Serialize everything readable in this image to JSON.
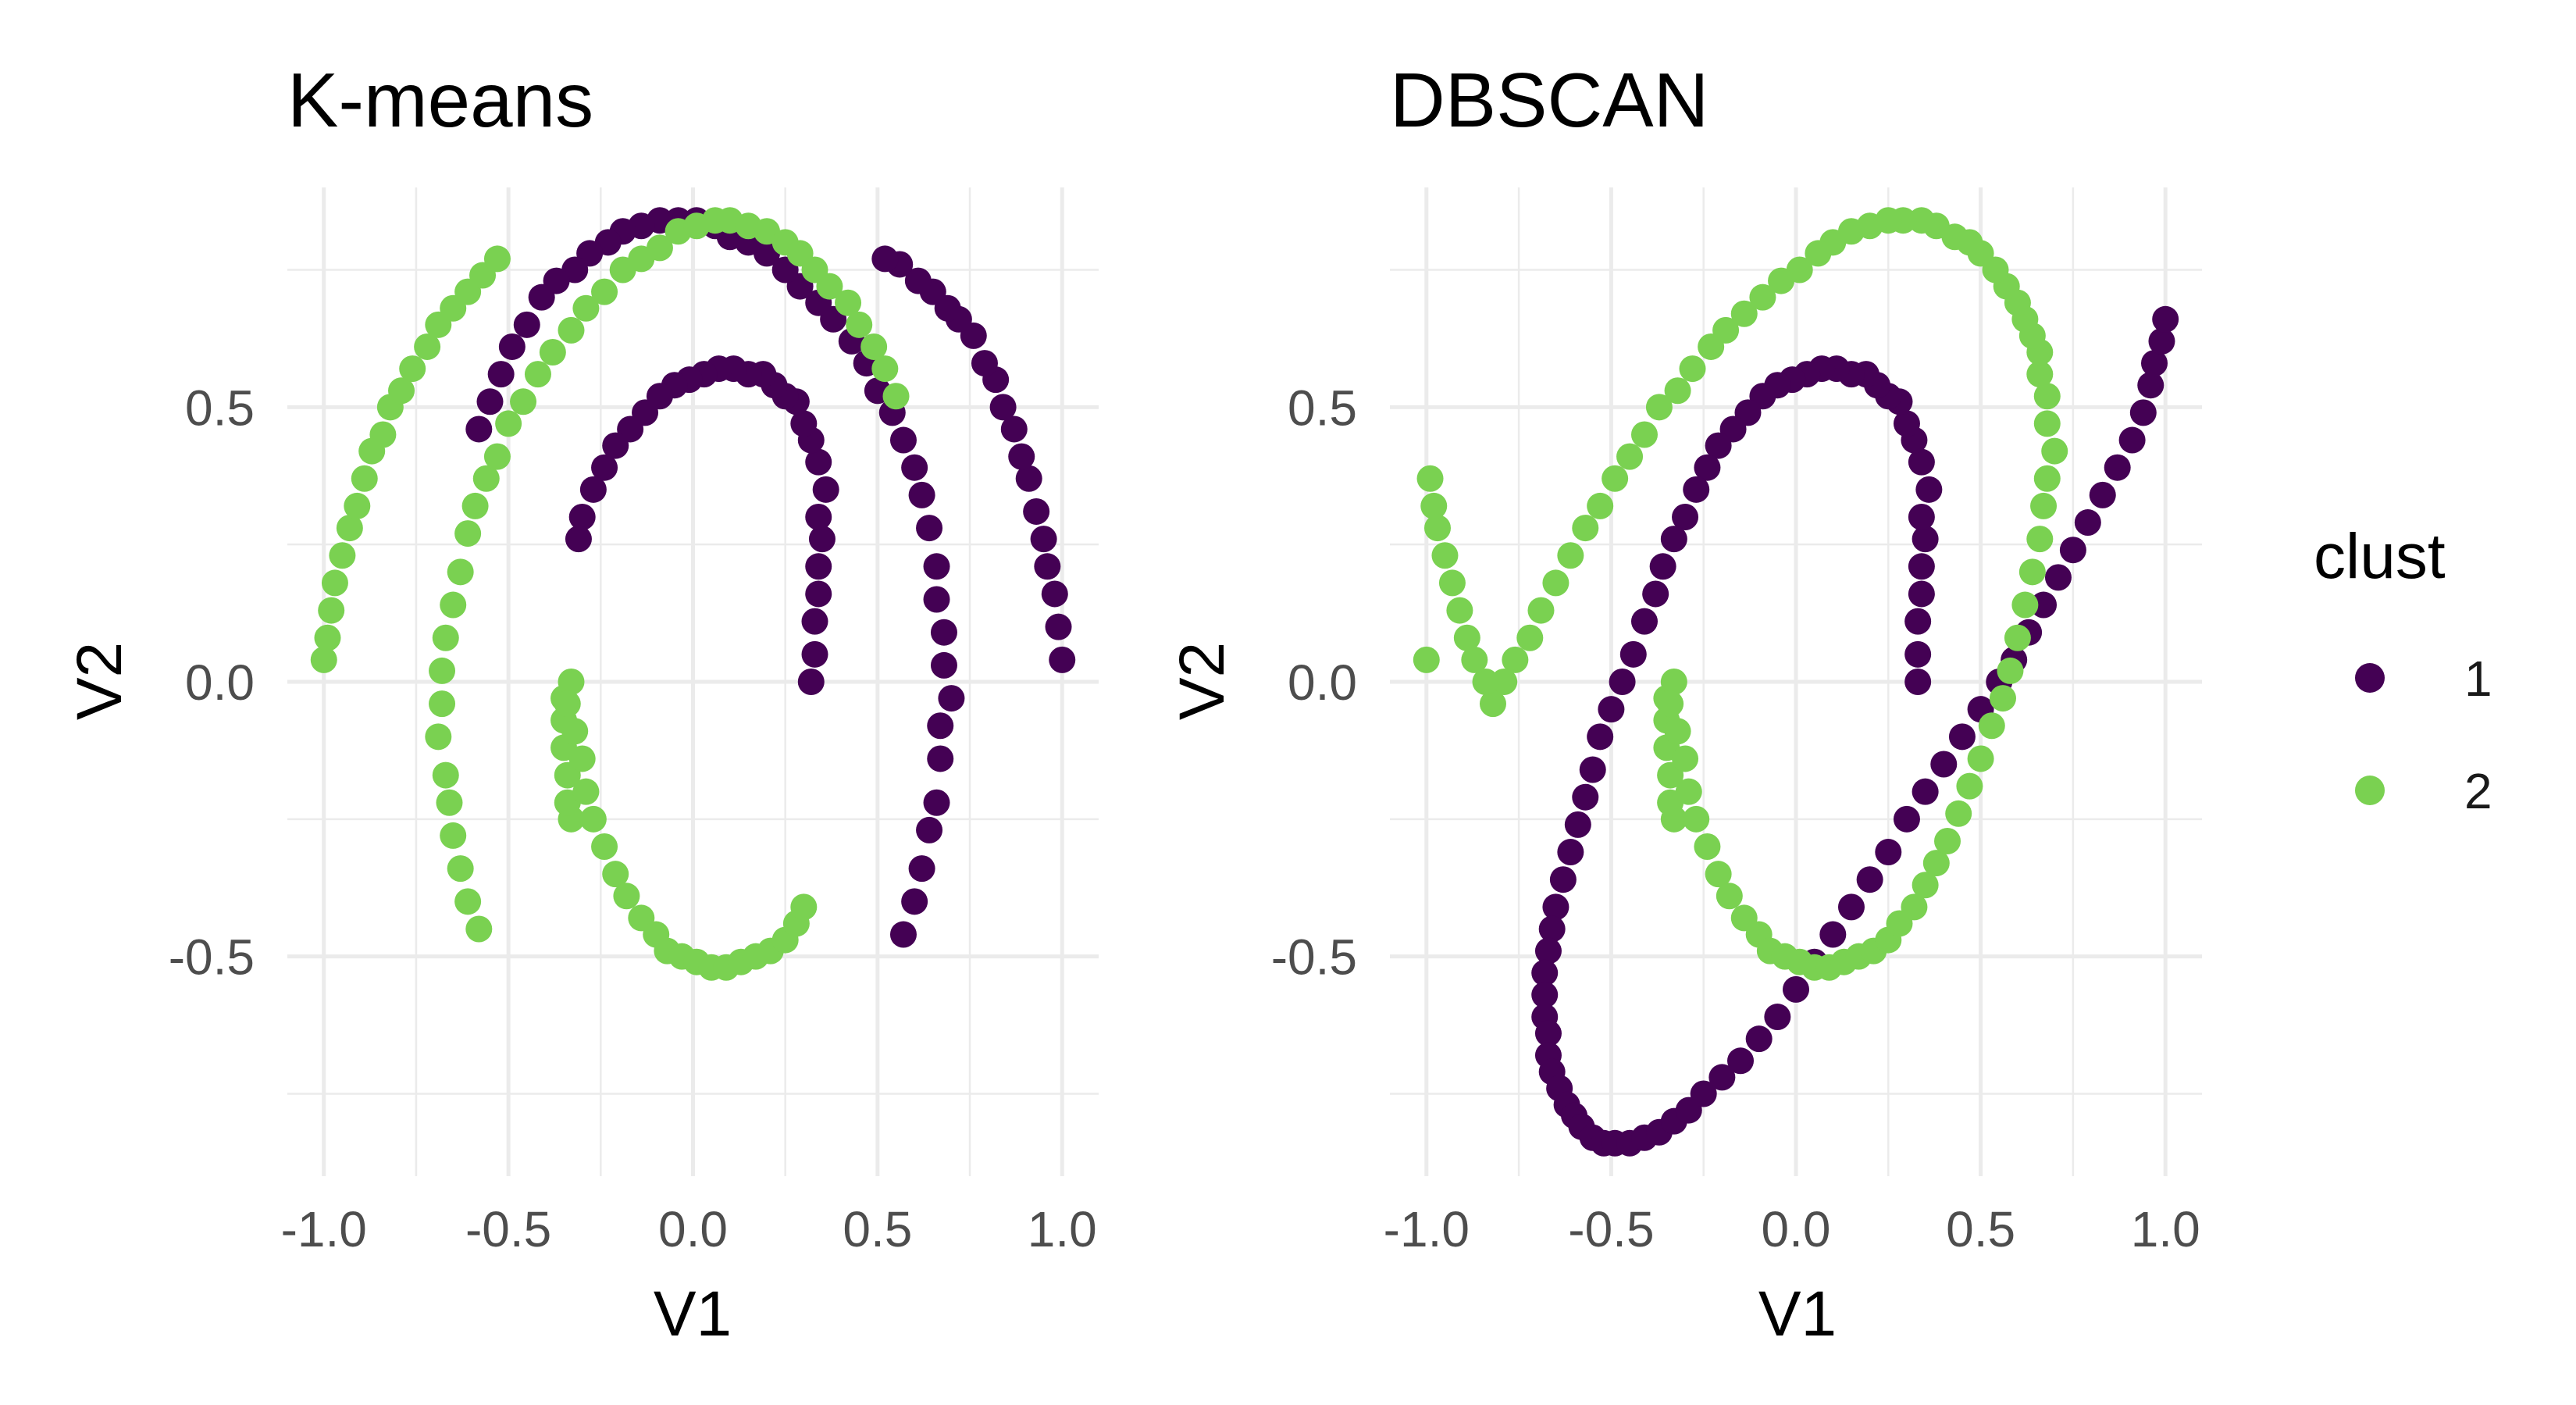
{
  "chart_data": [
    {
      "type": "scatter",
      "title": "K-means",
      "xlabel": "V1",
      "ylabel": "V2",
      "xlim": [
        -1.0,
        1.0
      ],
      "ylim": [
        -0.9,
        0.9
      ],
      "x_ticks": [
        "-1.0",
        "-0.5",
        "0.0",
        "0.5",
        "1.0"
      ],
      "y_ticks": [
        "-0.5",
        "0.0",
        "0.5"
      ],
      "grid": true,
      "series": [
        {
          "name": "1",
          "color": "#440154",
          "x": [
            0.32,
            0.33,
            0.33,
            0.34,
            0.34,
            0.35,
            0.34,
            0.36,
            0.34,
            0.32,
            0.3,
            0.28,
            0.25,
            0.22,
            0.19,
            0.15,
            0.11,
            0.07,
            0.03,
            -0.01,
            -0.05,
            -0.09,
            -0.13,
            -0.17,
            -0.21,
            -0.24,
            -0.27,
            -0.3,
            -0.31,
            0.57,
            0.6,
            0.62,
            0.64,
            0.66,
            0.67,
            0.67,
            0.7,
            0.68,
            0.68,
            0.66,
            0.66,
            0.64,
            0.62,
            0.6,
            0.57,
            0.54,
            0.5,
            0.47,
            0.43,
            0.38,
            0.34,
            0.29,
            0.25,
            0.2,
            0.15,
            0.1,
            0.06,
            0.01,
            -0.04,
            -0.09,
            -0.14,
            -0.19,
            -0.23,
            -0.28,
            -0.32,
            -0.37,
            -0.41,
            -0.45,
            -0.49,
            -0.52,
            -0.55,
            -0.58,
            1.0,
            0.99,
            0.98,
            0.96,
            0.95,
            0.93,
            0.91,
            0.89,
            0.87,
            0.84,
            0.82,
            0.79,
            0.76,
            0.72,
            0.69,
            0.65,
            0.61,
            0.56,
            0.52
          ],
          "y": [
            0.0,
            0.05,
            0.11,
            0.16,
            0.21,
            0.26,
            0.3,
            0.35,
            0.4,
            0.44,
            0.47,
            0.51,
            0.52,
            0.54,
            0.56,
            0.56,
            0.57,
            0.57,
            0.56,
            0.55,
            0.54,
            0.52,
            0.49,
            0.46,
            0.43,
            0.39,
            0.35,
            0.3,
            0.26,
            -0.46,
            -0.4,
            -0.34,
            -0.27,
            -0.22,
            -0.14,
            -0.08,
            -0.03,
            0.03,
            0.09,
            0.15,
            0.21,
            0.28,
            0.34,
            0.39,
            0.44,
            0.49,
            0.53,
            0.58,
            0.62,
            0.66,
            0.69,
            0.72,
            0.75,
            0.78,
            0.8,
            0.81,
            0.83,
            0.84,
            0.84,
            0.84,
            0.83,
            0.82,
            0.8,
            0.78,
            0.75,
            0.73,
            0.7,
            0.65,
            0.61,
            0.56,
            0.51,
            0.46,
            0.04,
            0.1,
            0.16,
            0.21,
            0.26,
            0.31,
            0.37,
            0.41,
            0.46,
            0.5,
            0.55,
            0.58,
            0.63,
            0.66,
            0.68,
            0.71,
            0.73,
            0.76,
            0.77
          ]
        },
        {
          "name": "2",
          "color": "#7AD151",
          "x": [
            -0.33,
            -0.34,
            -0.34,
            -0.35,
            -0.35,
            -0.35,
            -0.33,
            -0.34,
            -0.32,
            -0.3,
            -0.29,
            -0.27,
            -0.24,
            -0.21,
            -0.18,
            -0.14,
            -0.1,
            -0.07,
            -0.03,
            0.01,
            0.05,
            0.09,
            0.13,
            0.17,
            0.21,
            0.25,
            0.28,
            0.3,
            -0.58,
            -0.61,
            -0.63,
            -0.65,
            -0.66,
            -0.67,
            -0.69,
            -0.68,
            -0.68,
            -0.67,
            -0.65,
            -0.63,
            -0.61,
            -0.59,
            -0.56,
            -0.53,
            -0.5,
            -0.46,
            -0.42,
            -0.38,
            -0.33,
            -0.29,
            -0.24,
            -0.19,
            -0.14,
            -0.09,
            -0.04,
            0.01,
            0.06,
            0.1,
            0.15,
            0.2,
            0.25,
            0.29,
            0.33,
            0.37,
            0.42,
            0.45,
            0.49,
            0.52,
            0.55,
            -1.0,
            -0.99,
            -0.98,
            -0.97,
            -0.95,
            -0.93,
            -0.91,
            -0.89,
            -0.87,
            -0.84,
            -0.82,
            -0.79,
            -0.76,
            -0.72,
            -0.69,
            -0.65,
            -0.61,
            -0.57,
            -0.53
          ],
          "y": [
            -0.25,
            -0.22,
            -0.17,
            -0.12,
            -0.07,
            -0.03,
            0.0,
            -0.04,
            -0.09,
            -0.14,
            -0.2,
            -0.25,
            -0.3,
            -0.35,
            -0.39,
            -0.43,
            -0.46,
            -0.49,
            -0.5,
            -0.51,
            -0.52,
            -0.52,
            -0.51,
            -0.5,
            -0.49,
            -0.47,
            -0.44,
            -0.41,
            -0.45,
            -0.4,
            -0.34,
            -0.28,
            -0.22,
            -0.17,
            -0.1,
            -0.04,
            0.02,
            0.08,
            0.14,
            0.2,
            0.27,
            0.32,
            0.37,
            0.41,
            0.47,
            0.51,
            0.56,
            0.6,
            0.64,
            0.68,
            0.71,
            0.75,
            0.77,
            0.79,
            0.82,
            0.83,
            0.84,
            0.84,
            0.83,
            0.82,
            0.8,
            0.78,
            0.75,
            0.72,
            0.69,
            0.65,
            0.61,
            0.57,
            0.52,
            0.04,
            0.08,
            0.13,
            0.18,
            0.23,
            0.28,
            0.32,
            0.37,
            0.42,
            0.45,
            0.5,
            0.53,
            0.57,
            0.61,
            0.65,
            0.68,
            0.71,
            0.74,
            0.77
          ]
        }
      ]
    },
    {
      "type": "scatter",
      "title": "DBSCAN",
      "xlabel": "V1",
      "ylabel": "V2",
      "xlim": [
        -1.0,
        1.0
      ],
      "ylim": [
        -0.9,
        0.9
      ],
      "x_ticks": [
        "-1.0",
        "-0.5",
        "0.0",
        "0.5",
        "1.0"
      ],
      "y_ticks": [
        "-0.5",
        "0.0",
        "0.5"
      ],
      "grid": true,
      "series": [
        {
          "name": "1",
          "color": "#440154",
          "x": [
            0.33,
            0.33,
            0.33,
            0.34,
            0.34,
            0.35,
            0.34,
            0.36,
            0.34,
            0.32,
            0.3,
            0.28,
            0.25,
            0.22,
            0.19,
            0.15,
            0.11,
            0.07,
            0.03,
            -0.01,
            -0.05,
            -0.09,
            -0.13,
            -0.17,
            -0.21,
            -0.24,
            -0.27,
            -0.3,
            -0.33,
            -0.36,
            -0.38,
            -0.41,
            -0.44,
            -0.47,
            -0.5,
            -0.53,
            -0.55,
            -0.57,
            -0.59,
            -0.61,
            -0.63,
            -0.65,
            -0.66,
            -0.67,
            -0.68,
            -0.68,
            -0.68,
            -0.67,
            -0.67,
            -0.66,
            -0.64,
            -0.62,
            -0.6,
            -0.58,
            -0.55,
            -0.52,
            -0.49,
            -0.45,
            -0.41,
            -0.37,
            -0.33,
            -0.29,
            -0.25,
            -0.2,
            -0.15,
            -0.1,
            -0.05,
            0.0,
            0.05,
            0.1,
            0.15,
            0.2,
            0.25,
            0.3,
            0.35,
            0.4,
            0.45,
            0.5,
            0.55,
            0.59,
            0.63,
            0.67,
            0.71,
            0.75,
            0.79,
            0.83,
            0.87,
            0.91,
            0.94,
            0.96,
            0.97,
            0.99,
            1.0
          ],
          "y": [
            0.0,
            0.05,
            0.11,
            0.16,
            0.21,
            0.26,
            0.3,
            0.35,
            0.4,
            0.44,
            0.47,
            0.51,
            0.52,
            0.54,
            0.56,
            0.56,
            0.57,
            0.57,
            0.56,
            0.55,
            0.54,
            0.52,
            0.49,
            0.46,
            0.43,
            0.39,
            0.35,
            0.3,
            0.26,
            0.21,
            0.16,
            0.11,
            0.05,
            0.0,
            -0.05,
            -0.1,
            -0.16,
            -0.21,
            -0.26,
            -0.31,
            -0.36,
            -0.41,
            -0.45,
            -0.49,
            -0.53,
            -0.57,
            -0.61,
            -0.64,
            -0.68,
            -0.71,
            -0.74,
            -0.77,
            -0.79,
            -0.81,
            -0.83,
            -0.84,
            -0.84,
            -0.84,
            -0.83,
            -0.82,
            -0.8,
            -0.78,
            -0.75,
            -0.72,
            -0.69,
            -0.65,
            -0.61,
            -0.56,
            -0.51,
            -0.46,
            -0.41,
            -0.36,
            -0.31,
            -0.25,
            -0.2,
            -0.15,
            -0.1,
            -0.05,
            0.0,
            0.04,
            0.09,
            0.14,
            0.19,
            0.24,
            0.29,
            0.34,
            0.39,
            0.44,
            0.49,
            0.54,
            0.58,
            0.62,
            0.66
          ]
        },
        {
          "name": "2",
          "color": "#7AD151",
          "x": [
            -0.33,
            -0.34,
            -0.34,
            -0.35,
            -0.35,
            -0.35,
            -0.33,
            -0.34,
            -0.32,
            -0.3,
            -0.29,
            -0.27,
            -0.24,
            -0.21,
            -0.18,
            -0.14,
            -0.1,
            -0.07,
            -0.03,
            0.01,
            0.05,
            0.09,
            0.13,
            0.17,
            0.21,
            0.25,
            0.28,
            0.32,
            0.35,
            0.38,
            0.41,
            0.44,
            0.47,
            0.5,
            0.53,
            0.56,
            0.58,
            0.6,
            0.62,
            0.64,
            0.66,
            0.67,
            0.68,
            0.7,
            0.68,
            0.68,
            0.66,
            0.66,
            0.64,
            0.62,
            0.6,
            0.57,
            0.54,
            0.5,
            0.47,
            0.43,
            0.38,
            0.34,
            0.29,
            0.25,
            0.2,
            0.15,
            0.1,
            0.06,
            0.01,
            -0.04,
            -0.09,
            -0.14,
            -0.19,
            -0.23,
            -0.28,
            -0.32,
            -0.37,
            -0.41,
            -0.45,
            -0.49,
            -0.53,
            -0.57,
            -0.61,
            -0.65,
            -0.69,
            -0.72,
            -0.76,
            -0.79,
            -0.82,
            -0.84,
            -0.87,
            -0.89,
            -0.91,
            -0.93,
            -0.95,
            -0.97,
            -0.98,
            -0.99,
            -1.0
          ],
          "y": [
            -0.25,
            -0.22,
            -0.17,
            -0.12,
            -0.07,
            -0.03,
            0.0,
            -0.04,
            -0.09,
            -0.14,
            -0.2,
            -0.25,
            -0.3,
            -0.35,
            -0.39,
            -0.43,
            -0.46,
            -0.49,
            -0.5,
            -0.51,
            -0.52,
            -0.52,
            -0.51,
            -0.5,
            -0.49,
            -0.47,
            -0.44,
            -0.41,
            -0.37,
            -0.33,
            -0.29,
            -0.24,
            -0.19,
            -0.14,
            -0.08,
            -0.03,
            0.02,
            0.08,
            0.14,
            0.2,
            0.26,
            0.32,
            0.37,
            0.42,
            0.47,
            0.52,
            0.56,
            0.6,
            0.63,
            0.66,
            0.69,
            0.72,
            0.75,
            0.78,
            0.8,
            0.81,
            0.83,
            0.84,
            0.84,
            0.84,
            0.83,
            0.82,
            0.8,
            0.78,
            0.75,
            0.73,
            0.7,
            0.67,
            0.64,
            0.61,
            0.57,
            0.53,
            0.5,
            0.45,
            0.41,
            0.37,
            0.32,
            0.28,
            0.23,
            0.18,
            0.13,
            0.08,
            0.04,
            0.0,
            -0.04,
            0.0,
            0.04,
            0.08,
            0.13,
            0.18,
            0.23,
            0.28,
            0.32,
            0.37,
            0.04
          ]
        }
      ]
    }
  ],
  "legend": {
    "title": "clust",
    "items": [
      {
        "label": "1",
        "color": "#440154"
      },
      {
        "label": "2",
        "color": "#7AD151"
      }
    ]
  }
}
